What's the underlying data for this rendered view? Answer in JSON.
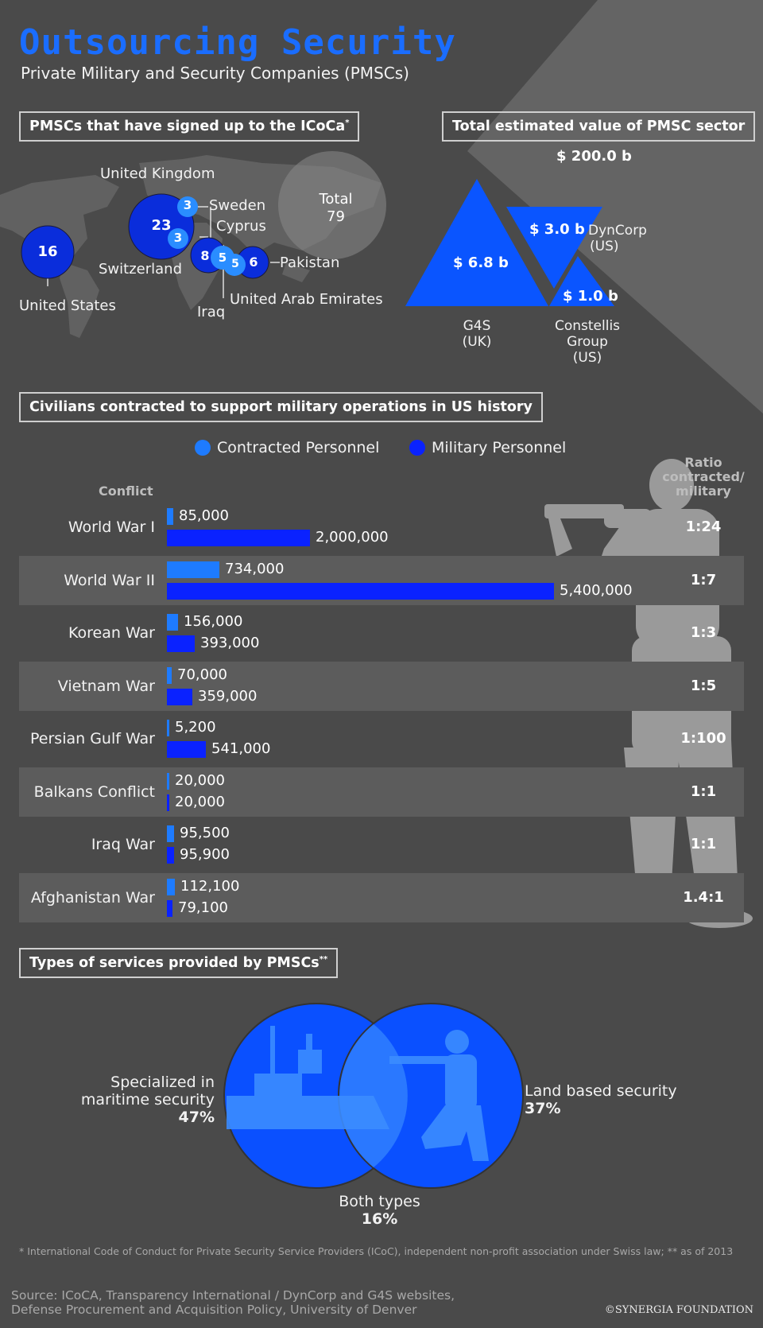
{
  "title": "Outsourcing Security",
  "subtitle": "Private Military and Security Companies (PMSCs)",
  "icoca": {
    "heading": "PMSCs that have signed up to the ICoCa",
    "heading_mark": "*",
    "total_label": "Total",
    "total_value": "79",
    "countries": [
      {
        "name": "United States",
        "count": 16
      },
      {
        "name": "United Kingdom",
        "count": 23
      },
      {
        "name": "Sweden",
        "count": 3
      },
      {
        "name": "Cyprus",
        "count": 3
      },
      {
        "name": "Switzerland",
        "count": 8
      },
      {
        "name": "Iraq",
        "count": 5
      },
      {
        "name": "United Arab Emirates",
        "count": 5
      },
      {
        "name": "Pakistan",
        "count": 6
      }
    ]
  },
  "sector": {
    "heading": "Total estimated value of PMSC sector",
    "total": "$ 200.0 b",
    "companies": [
      {
        "name_line1": "G4S",
        "name_line2": "(UK)",
        "value": "$ 6.8 b"
      },
      {
        "name_line1": "DynCorp",
        "name_line2": "(US)",
        "value": "$ 3.0 b"
      },
      {
        "name_line1": "Constellis",
        "name_line2": "Group",
        "name_line3": "(US)",
        "value": "$ 1.0 b"
      }
    ]
  },
  "history": {
    "heading": "Civilians contracted to support military operations in US history",
    "legend_contracted": "Contracted Personnel",
    "legend_military": "Military Personnel",
    "col_conflict": "Conflict",
    "col_ratio_l1": "Ratio",
    "col_ratio_l2": "contracted/",
    "col_ratio_l3": "military"
  },
  "chart_data": {
    "type": "bar",
    "orientation": "horizontal",
    "categories": [
      "World War I",
      "World War II",
      "Korean War",
      "Vietnam War",
      "Persian Gulf War",
      "Balkans Conflict",
      "Iraq War",
      "Afghanistan War"
    ],
    "series": [
      {
        "name": "Contracted Personnel",
        "values": [
          85000,
          734000,
          156000,
          70000,
          5200,
          20000,
          95500,
          112100
        ],
        "labels": [
          "85,000",
          "734,000",
          "156,000",
          "70,000",
          "5,200",
          "20,000",
          "95,500",
          "112,100"
        ],
        "color": "#1e7bff"
      },
      {
        "name": "Military Personnel",
        "values": [
          2000000,
          5400000,
          393000,
          359000,
          541000,
          20000,
          95900,
          79100
        ],
        "labels": [
          "2,000,000",
          "5,400,000",
          "393,000",
          "359,000",
          "541,000",
          "20,000",
          "95,900",
          "79,100"
        ],
        "color": "#0a22ff"
      }
    ],
    "ratios": [
      "1:24",
      "1:7",
      "1:3",
      "1:5",
      "1:100",
      "1:1",
      "1:1",
      "1.4:1"
    ]
  },
  "services": {
    "heading": "Types of services provided by PMSCs",
    "heading_mark": "**",
    "maritime_l1": "Specialized in",
    "maritime_l2": "maritime security",
    "maritime_pct": "47%",
    "land_label": "Land based security",
    "land_pct": "37%",
    "both_label": "Both types",
    "both_pct": "16%"
  },
  "footnote": "* International Code of Conduct for Private Security Service Providers (ICoC), independent non-profit association under Swiss law; ** as of 2013",
  "source_l1": "Source: ICoCA, Transparency International / DynCorp and G4S websites,",
  "source_l2": "Defense Procurement and Acquisition Policy, University of Denver",
  "credit": "©SYNERGIA FOUNDATION",
  "colors": {
    "accent": "#1a6dff",
    "contracted": "#1e7bff",
    "military": "#0a22ff",
    "background": "#4a4a4a"
  }
}
